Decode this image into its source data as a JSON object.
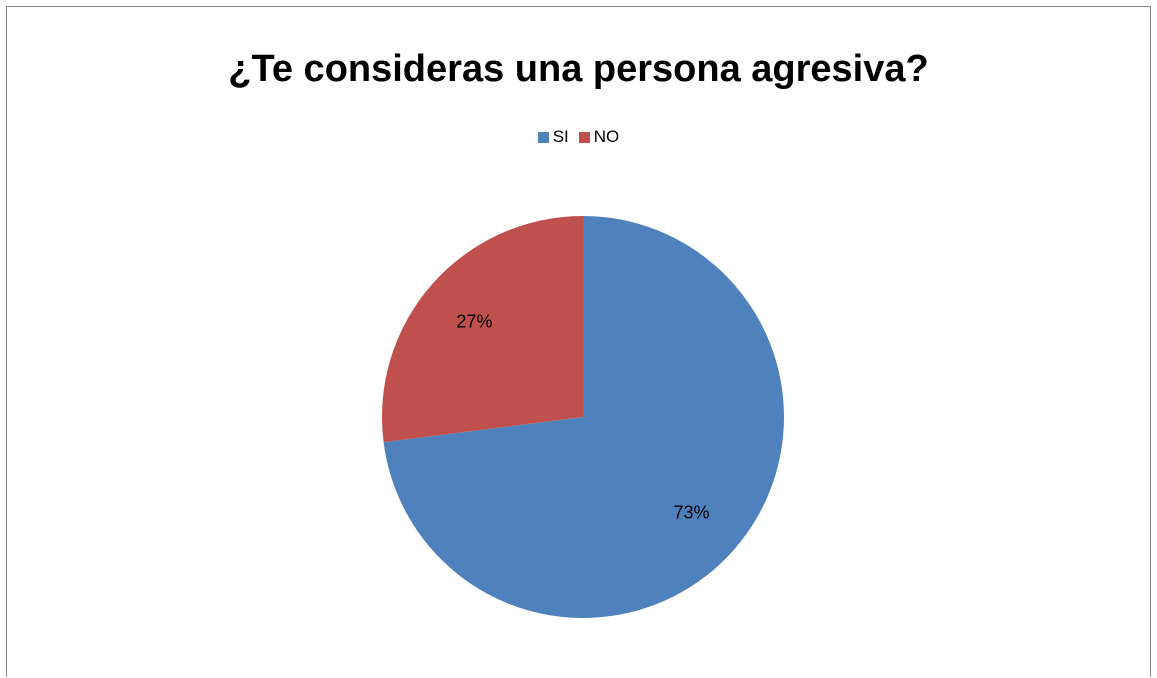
{
  "chart_data": {
    "type": "pie",
    "title": "¿Te consideras una persona agresiva?",
    "legend_position": "top",
    "categories": [
      "SI",
      "NO"
    ],
    "values": [
      73,
      27
    ],
    "data_labels": [
      "73%",
      "27%"
    ],
    "colors": [
      "#4f81bd",
      "#c0504d"
    ]
  }
}
